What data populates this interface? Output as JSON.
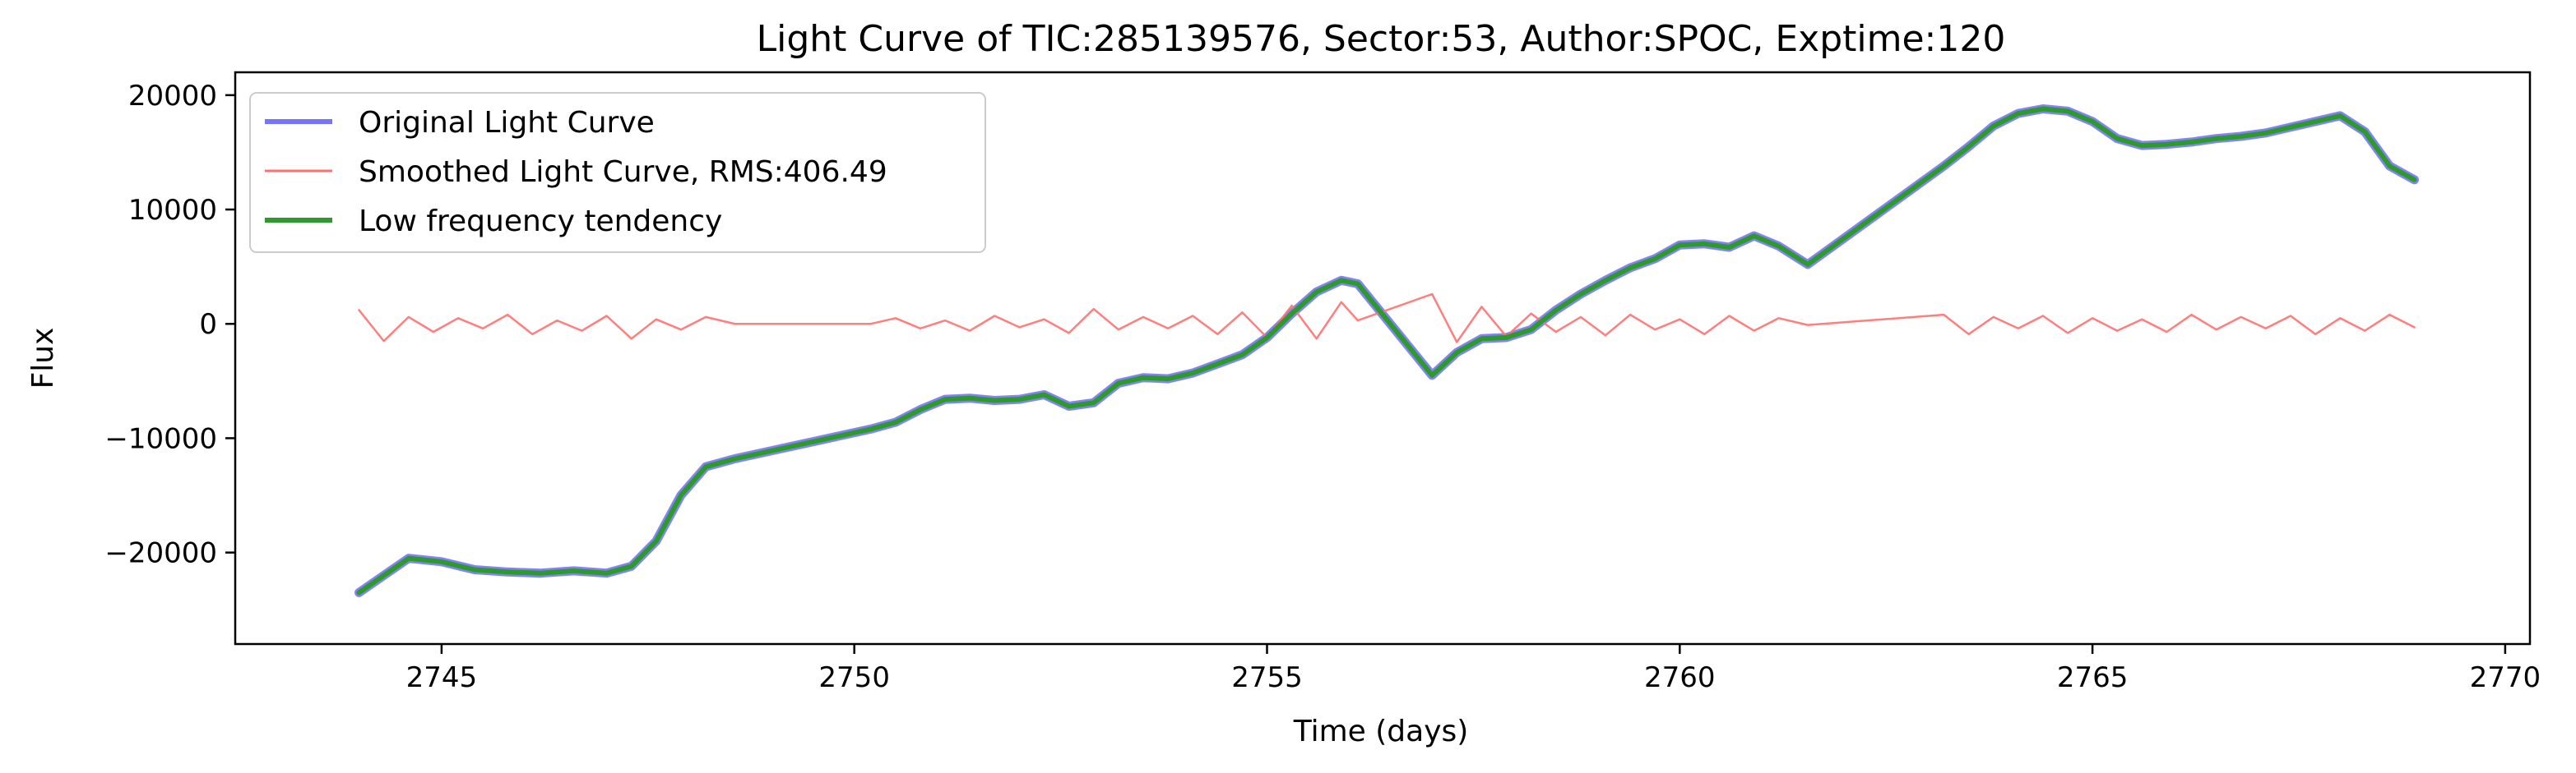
{
  "chart_data": {
    "type": "line",
    "title": "Light Curve of TIC:285139576, Sector:53, Author:SPOC, Exptime:120",
    "xlabel": "Time (days)",
    "ylabel": "Flux",
    "xlim": [
      2742.5,
      2770.3
    ],
    "ylim": [
      -28000,
      22000
    ],
    "xticks": [
      2745,
      2750,
      2755,
      2760,
      2765,
      2770
    ],
    "yticks": [
      -20000,
      -10000,
      0,
      10000,
      20000
    ],
    "xtick_labels": [
      "2745",
      "2750",
      "2755",
      "2760",
      "2765",
      "2770"
    ],
    "ytick_labels": [
      "−20000",
      "−10000",
      "0",
      "10000",
      "20000"
    ],
    "grid": false,
    "legend_position": "top-left",
    "series": [
      {
        "name": "Original Light Curve",
        "color": "#7575f5",
        "x": [
          2744.0,
          2744.3,
          2744.6,
          2745.0,
          2745.4,
          2745.8,
          2746.2,
          2746.6,
          2747.0,
          2747.3,
          2747.6,
          2747.9,
          2748.2,
          2748.55,
          2750.2,
          2750.5,
          2750.8,
          2751.1,
          2751.4,
          2751.7,
          2752.0,
          2752.3,
          2752.6,
          2752.9,
          2753.2,
          2753.5,
          2753.8,
          2754.1,
          2754.4,
          2754.7,
          2755.0,
          2755.3,
          2755.6,
          2755.9,
          2756.1,
          2757.0,
          2757.3,
          2757.6,
          2757.9,
          2758.2,
          2758.5,
          2758.8,
          2759.1,
          2759.4,
          2759.7,
          2760.0,
          2760.3,
          2760.6,
          2760.9,
          2761.2,
          2761.55,
          2763.2,
          2763.5,
          2763.8,
          2764.1,
          2764.4,
          2764.7,
          2765.0,
          2765.3,
          2765.6,
          2765.9,
          2766.2,
          2766.5,
          2766.8,
          2767.1,
          2767.4,
          2767.7,
          2768.0,
          2768.3,
          2768.6,
          2768.9
        ],
        "y": [
          -23500,
          -22000,
          -20500,
          -20800,
          -21500,
          -21700,
          -21800,
          -21600,
          -21800,
          -21200,
          -19000,
          -15000,
          -12500,
          -11800,
          -9200,
          -8600,
          -7500,
          -6600,
          -6500,
          -6700,
          -6600,
          -6200,
          -7200,
          -6900,
          -5200,
          -4700,
          -4800,
          -4300,
          -3500,
          -2700,
          -1200,
          900,
          2800,
          3800,
          3500,
          -4500,
          -2500,
          -1300,
          -1200,
          -500,
          1200,
          2600,
          3800,
          4900,
          5700,
          6900,
          7000,
          6700,
          7700,
          6800,
          5200,
          13800,
          15500,
          17300,
          18400,
          18800,
          18600,
          17700,
          16200,
          15600,
          15700,
          15900,
          16200,
          16400,
          16700,
          17200,
          17700,
          18200,
          16800,
          13800,
          12600
        ]
      },
      {
        "name": "Smoothed Light Curve, RMS:406.49",
        "color": "#ff7070",
        "x": [
          2744.0,
          2744.3,
          2744.6,
          2744.9,
          2745.2,
          2745.5,
          2745.8,
          2746.1,
          2746.4,
          2746.7,
          2747.0,
          2747.3,
          2747.6,
          2747.9,
          2748.2,
          2748.55,
          2750.2,
          2750.5,
          2750.8,
          2751.1,
          2751.4,
          2751.7,
          2752.0,
          2752.3,
          2752.6,
          2752.9,
          2753.2,
          2753.5,
          2753.8,
          2754.1,
          2754.4,
          2754.7,
          2755.0,
          2755.3,
          2755.6,
          2755.9,
          2756.1,
          2757.0,
          2757.3,
          2757.6,
          2757.9,
          2758.2,
          2758.5,
          2758.8,
          2759.1,
          2759.4,
          2759.7,
          2760.0,
          2760.3,
          2760.6,
          2760.9,
          2761.2,
          2761.55,
          2763.2,
          2763.5,
          2763.8,
          2764.1,
          2764.4,
          2764.7,
          2765.0,
          2765.3,
          2765.6,
          2765.9,
          2766.2,
          2766.5,
          2766.8,
          2767.1,
          2767.4,
          2767.7,
          2768.0,
          2768.3,
          2768.6,
          2768.9
        ],
        "y": [
          1200,
          -1500,
          600,
          -700,
          500,
          -400,
          800,
          -900,
          300,
          -600,
          700,
          -1300,
          400,
          -500,
          600,
          0,
          0,
          500,
          -400,
          300,
          -600,
          700,
          -300,
          400,
          -800,
          1300,
          -500,
          600,
          -400,
          700,
          -900,
          1000,
          -1200,
          1600,
          -1300,
          1900,
          300,
          2600,
          -1600,
          1500,
          -1100,
          900,
          -700,
          600,
          -1000,
          800,
          -500,
          400,
          -900,
          700,
          -600,
          500,
          -100,
          800,
          -900,
          600,
          -400,
          700,
          -800,
          500,
          -600,
          400,
          -700,
          800,
          -500,
          600,
          -400,
          700,
          -900,
          500,
          -600,
          800,
          -300
        ]
      },
      {
        "name": "Low frequency tendency",
        "color": "#2e9a2e",
        "x": [
          2744.0,
          2744.3,
          2744.6,
          2745.0,
          2745.4,
          2745.8,
          2746.2,
          2746.6,
          2747.0,
          2747.3,
          2747.6,
          2747.9,
          2748.2,
          2748.55,
          2750.2,
          2750.5,
          2750.8,
          2751.1,
          2751.4,
          2751.7,
          2752.0,
          2752.3,
          2752.6,
          2752.9,
          2753.2,
          2753.5,
          2753.8,
          2754.1,
          2754.4,
          2754.7,
          2755.0,
          2755.3,
          2755.6,
          2755.9,
          2756.1,
          2757.0,
          2757.3,
          2757.6,
          2757.9,
          2758.2,
          2758.5,
          2758.8,
          2759.1,
          2759.4,
          2759.7,
          2760.0,
          2760.3,
          2760.6,
          2760.9,
          2761.2,
          2761.55,
          2763.2,
          2763.5,
          2763.8,
          2764.1,
          2764.4,
          2764.7,
          2765.0,
          2765.3,
          2765.6,
          2765.9,
          2766.2,
          2766.5,
          2766.8,
          2767.1,
          2767.4,
          2767.7,
          2768.0,
          2768.3,
          2768.6,
          2768.9
        ],
        "y": [
          -23500,
          -22000,
          -20500,
          -20800,
          -21500,
          -21700,
          -21800,
          -21600,
          -21800,
          -21200,
          -19000,
          -15000,
          -12500,
          -11800,
          -9200,
          -8600,
          -7500,
          -6600,
          -6500,
          -6700,
          -6600,
          -6200,
          -7200,
          -6900,
          -5200,
          -4700,
          -4800,
          -4300,
          -3500,
          -2700,
          -1200,
          900,
          2800,
          3800,
          3500,
          -4500,
          -2500,
          -1300,
          -1200,
          -500,
          1200,
          2600,
          3800,
          4900,
          5700,
          6900,
          7000,
          6700,
          7700,
          6800,
          5200,
          13800,
          15500,
          17300,
          18400,
          18800,
          18600,
          17700,
          16200,
          15600,
          15700,
          15900,
          16200,
          16400,
          16700,
          17200,
          17700,
          18200,
          16800,
          13800,
          12600
        ]
      }
    ]
  }
}
